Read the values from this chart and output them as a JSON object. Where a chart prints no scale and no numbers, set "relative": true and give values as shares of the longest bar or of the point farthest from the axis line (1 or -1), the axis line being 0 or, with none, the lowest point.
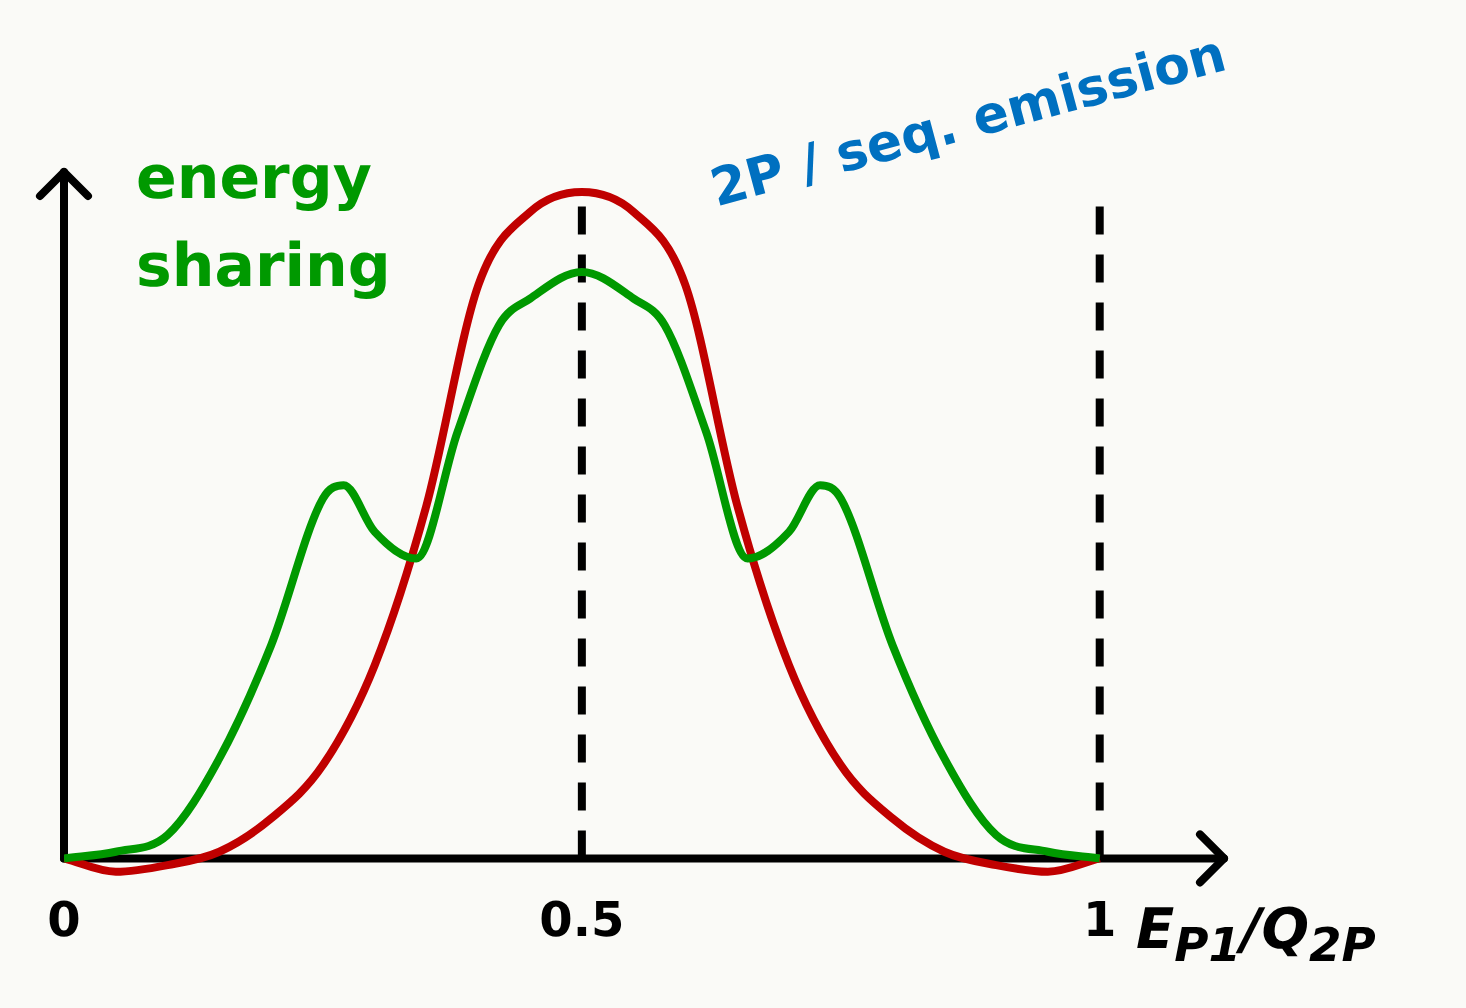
{
  "chart_data": {
    "type": "line",
    "relative": true,
    "xlabel": "E$_{P1}$/Q$_{2P}$",
    "xlim": [
      0,
      1.12
    ],
    "xticks": [
      0,
      0.5,
      1
    ],
    "grid": false,
    "legend": false,
    "marker": "none",
    "line_style": "solid",
    "annotations": [
      "energy sharing",
      "2P / seq. emission"
    ],
    "ref_lines": [
      {
        "axis": "x",
        "value": 0.5,
        "color": "#000000",
        "line_style": "dashed"
      },
      {
        "axis": "x",
        "value": 1,
        "color": "#000000",
        "line_style": "dashed"
      }
    ],
    "series": [
      {
        "color": "#009900",
        "x": [
          0,
          0.05,
          0.1,
          0.15,
          0.2,
          0.25,
          0.27,
          0.3,
          0.34,
          0.38,
          0.42,
          0.45,
          0.5,
          0.55,
          0.58,
          0.62,
          0.66,
          0.7,
          0.73,
          0.75,
          0.8,
          0.85,
          0.9,
          0.95,
          1
        ],
        "values": [
          0,
          0.01,
          0.035,
          0.15,
          0.32,
          0.54,
          0.56,
          0.49,
          0.45,
          0.64,
          0.8,
          0.84,
          0.88,
          0.84,
          0.8,
          0.64,
          0.45,
          0.49,
          0.56,
          0.54,
          0.32,
          0.15,
          0.035,
          0.01,
          0
        ]
      },
      {
        "color": "#c00000",
        "x": [
          0,
          0.05,
          0.1,
          0.15,
          0.2,
          0.25,
          0.3,
          0.35,
          0.4,
          0.45,
          0.5,
          0.55,
          0.6,
          0.65,
          0.7,
          0.75,
          0.8,
          0.85,
          0.9,
          0.95,
          1
        ],
        "values": [
          0,
          -0.02,
          -0.01,
          0.01,
          0.06,
          0.14,
          0.29,
          0.53,
          0.86,
          0.97,
          1,
          0.97,
          0.86,
          0.53,
          0.29,
          0.14,
          0.06,
          0.01,
          -0.01,
          -0.02,
          0
        ]
      }
    ]
  }
}
